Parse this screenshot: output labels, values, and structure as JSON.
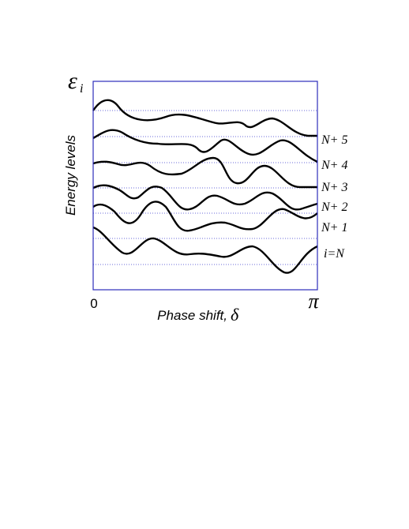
{
  "axis": {
    "y_symbol": "ε",
    "y_subscript": "i",
    "y_label": "Energy levels",
    "x_label": "Phase shift,",
    "x_symbol": "δ",
    "x_start": "0",
    "x_end": "π"
  },
  "levels": [
    "N+ 5",
    "N+ 4",
    "N+ 3",
    "N+ 2",
    "N+ 1",
    "i=N"
  ]
}
